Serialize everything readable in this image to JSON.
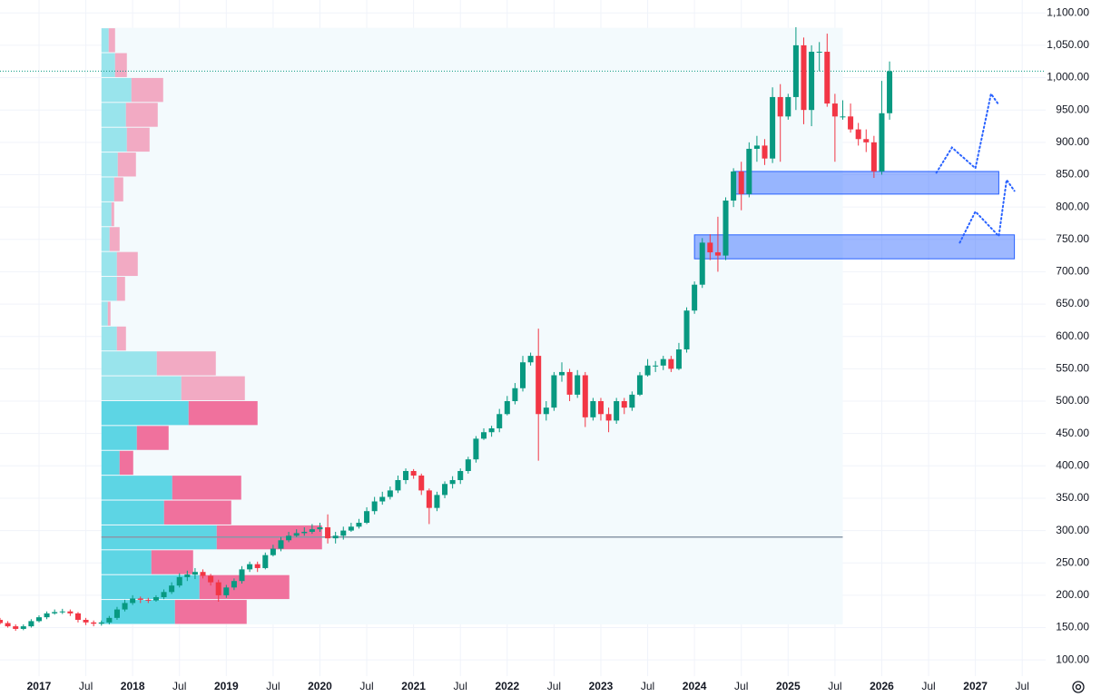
{
  "chart_data": {
    "type": "candlestick",
    "x": [
      "2016-08",
      "2016-09",
      "2016-10",
      "2016-11",
      "2016-12",
      "2017-01",
      "2017-02",
      "2017-03",
      "2017-04",
      "2017-05",
      "2017-06",
      "2017-07",
      "2017-08",
      "2017-09",
      "2017-10",
      "2017-11",
      "2017-12",
      "2018-01",
      "2018-02",
      "2018-03",
      "2018-04",
      "2018-05",
      "2018-06",
      "2018-07",
      "2018-08",
      "2018-09",
      "2018-10",
      "2018-11",
      "2018-12",
      "2019-01",
      "2019-02",
      "2019-03",
      "2019-04",
      "2019-05",
      "2019-06",
      "2019-07",
      "2019-08",
      "2019-09",
      "2019-10",
      "2019-11",
      "2019-12",
      "2020-01",
      "2020-02",
      "2020-03",
      "2020-04",
      "2020-05",
      "2020-06",
      "2020-07",
      "2020-08",
      "2020-09",
      "2020-10",
      "2020-11",
      "2020-12",
      "2021-01",
      "2021-02",
      "2021-03",
      "2021-04",
      "2021-05",
      "2021-06",
      "2021-07",
      "2021-08",
      "2021-09",
      "2021-10",
      "2021-11",
      "2021-12",
      "2022-01",
      "2022-02",
      "2022-03",
      "2022-04",
      "2022-05",
      "2022-06",
      "2022-07",
      "2022-08",
      "2022-09",
      "2022-10",
      "2022-11",
      "2022-12",
      "2023-01",
      "2023-02",
      "2023-03",
      "2023-04",
      "2023-05",
      "2023-06",
      "2023-07",
      "2023-08",
      "2023-09",
      "2023-10",
      "2023-11",
      "2023-12",
      "2024-01",
      "2024-02",
      "2024-03",
      "2024-04",
      "2024-05",
      "2024-06",
      "2024-07",
      "2024-08",
      "2024-09",
      "2024-10",
      "2024-11",
      "2024-12",
      "2025-01",
      "2025-02",
      "2025-03",
      "2025-04",
      "2025-05",
      "2025-06",
      "2025-07",
      "2025-08",
      "2025-09",
      "2025-10",
      "2025-11",
      "2025-12",
      "2026-01",
      "2026-02"
    ],
    "open": [
      162,
      157,
      152,
      148,
      152,
      160,
      166,
      172,
      174,
      175,
      172,
      162,
      158,
      156,
      158,
      165,
      178,
      188,
      195,
      193,
      192,
      197,
      205,
      215,
      228,
      232,
      236,
      230,
      220,
      200,
      212,
      222,
      240,
      248,
      242,
      262,
      272,
      285,
      292,
      296,
      298,
      302,
      305,
      288,
      292,
      300,
      306,
      312,
      330,
      345,
      352,
      362,
      378,
      392,
      385,
      362,
      335,
      355,
      372,
      378,
      392,
      410,
      442,
      452,
      458,
      480,
      500,
      520,
      560,
      570,
      480,
      490,
      540,
      545,
      510,
      540,
      475,
      500,
      480,
      470,
      500,
      490,
      510,
      540,
      555,
      555,
      565,
      550,
      580,
      640,
      680,
      745,
      730,
      725,
      810,
      855,
      820,
      890,
      895,
      875,
      970,
      940,
      970,
      1050,
      950,
      1040,
      1040,
      960,
      940,
      940,
      920,
      905,
      900,
      855,
      945
    ],
    "high": [
      165,
      160,
      155,
      155,
      163,
      169,
      175,
      178,
      179,
      178,
      174,
      165,
      161,
      161,
      168,
      182,
      193,
      200,
      198,
      196,
      200,
      209,
      220,
      234,
      238,
      242,
      240,
      233,
      224,
      216,
      226,
      245,
      252,
      252,
      266,
      278,
      290,
      298,
      302,
      305,
      310,
      312,
      325,
      298,
      306,
      312,
      318,
      336,
      352,
      360,
      368,
      385,
      396,
      395,
      388,
      365,
      360,
      376,
      384,
      396,
      414,
      446,
      458,
      462,
      488,
      508,
      528,
      570,
      575,
      612,
      500,
      545,
      560,
      550,
      548,
      545,
      505,
      505,
      490,
      505,
      505,
      515,
      545,
      565,
      562,
      570,
      570,
      590,
      645,
      685,
      752,
      758,
      785,
      815,
      860,
      870,
      900,
      910,
      905,
      985,
      990,
      975,
      1078,
      1062,
      1050,
      1055,
      1068,
      975,
      965,
      960,
      930,
      920,
      910,
      995,
      1025
    ],
    "low": [
      155,
      150,
      145,
      146,
      150,
      158,
      163,
      170,
      171,
      168,
      158,
      154,
      152,
      153,
      155,
      162,
      175,
      185,
      188,
      188,
      190,
      194,
      202,
      212,
      222,
      225,
      226,
      215,
      190,
      196,
      208,
      218,
      236,
      236,
      240,
      260,
      268,
      282,
      290,
      292,
      295,
      298,
      280,
      280,
      286,
      298,
      303,
      310,
      325,
      340,
      348,
      358,
      372,
      380,
      355,
      310,
      330,
      350,
      365,
      372,
      388,
      405,
      440,
      445,
      452,
      478,
      495,
      515,
      555,
      408,
      470,
      485,
      530,
      500,
      505,
      460,
      470,
      470,
      452,
      465,
      480,
      485,
      508,
      538,
      545,
      548,
      545,
      548,
      575,
      635,
      675,
      718,
      700,
      718,
      800,
      795,
      815,
      870,
      865,
      868,
      870,
      935,
      950,
      928,
      925,
      1010,
      955,
      870,
      935,
      915,
      895,
      885,
      845,
      850,
      935
    ],
    "close": [
      157,
      152,
      148,
      152,
      160,
      166,
      172,
      174,
      175,
      172,
      162,
      158,
      156,
      158,
      165,
      178,
      188,
      195,
      193,
      192,
      197,
      205,
      215,
      228,
      232,
      236,
      230,
      220,
      200,
      212,
      222,
      240,
      248,
      242,
      262,
      272,
      285,
      292,
      296,
      298,
      302,
      305,
      288,
      292,
      300,
      306,
      312,
      330,
      345,
      352,
      362,
      378,
      392,
      385,
      362,
      335,
      355,
      372,
      378,
      392,
      410,
      442,
      452,
      458,
      480,
      500,
      520,
      560,
      570,
      480,
      490,
      540,
      545,
      510,
      540,
      475,
      500,
      480,
      470,
      500,
      490,
      510,
      540,
      555,
      555,
      565,
      550,
      580,
      640,
      680,
      745,
      730,
      725,
      810,
      855,
      820,
      890,
      895,
      875,
      970,
      940,
      970,
      1050,
      950,
      1040,
      1040,
      960,
      940,
      940,
      920,
      905,
      900,
      855,
      945,
      1010
    ],
    "up_color": "#089981",
    "down_color": "#f23645",
    "xlim": [
      "2016-08",
      "2027-10"
    ],
    "ylim": [
      75,
      1120
    ],
    "xticks": [
      {
        "value": "2017-01",
        "label": "2017"
      },
      {
        "value": "2017-07",
        "label": "Jul"
      },
      {
        "value": "2018-01",
        "label": "2018"
      },
      {
        "value": "2018-07",
        "label": "Jul"
      },
      {
        "value": "2019-01",
        "label": "2019"
      },
      {
        "value": "2019-07",
        "label": "Jul"
      },
      {
        "value": "2020-01",
        "label": "2020"
      },
      {
        "value": "2020-07",
        "label": "Jul"
      },
      {
        "value": "2021-01",
        "label": "2021"
      },
      {
        "value": "2021-07",
        "label": "Jul"
      },
      {
        "value": "2022-01",
        "label": "2022"
      },
      {
        "value": "2022-07",
        "label": "Jul"
      },
      {
        "value": "2023-01",
        "label": "2023"
      },
      {
        "value": "2023-07",
        "label": "Jul"
      },
      {
        "value": "2024-01",
        "label": "2024"
      },
      {
        "value": "2024-07",
        "label": "Jul"
      },
      {
        "value": "2025-01",
        "label": "2025"
      },
      {
        "value": "2025-07",
        "label": "Jul"
      },
      {
        "value": "2026-01",
        "label": "2026"
      },
      {
        "value": "2026-07",
        "label": "Jul"
      },
      {
        "value": "2027-01",
        "label": "2027"
      },
      {
        "value": "2027-07",
        "label": "Jul"
      }
    ],
    "yticks": [
      {
        "value": 100,
        "label": "100.00"
      },
      {
        "value": 150,
        "label": "150.00"
      },
      {
        "value": 200,
        "label": "200.00"
      },
      {
        "value": 250,
        "label": "250.00"
      },
      {
        "value": 300,
        "label": "300.00"
      },
      {
        "value": 350,
        "label": "350.00"
      },
      {
        "value": 400,
        "label": "400.00"
      },
      {
        "value": 450,
        "label": "450.00"
      },
      {
        "value": 500,
        "label": "500.00"
      },
      {
        "value": 550,
        "label": "550.00"
      },
      {
        "value": 600,
        "label": "600.00"
      },
      {
        "value": 650,
        "label": "650.00"
      },
      {
        "value": 700,
        "label": "700.00"
      },
      {
        "value": 750,
        "label": "750.00"
      },
      {
        "value": 800,
        "label": "800.00"
      },
      {
        "value": 850,
        "label": "850.00"
      },
      {
        "value": 900,
        "label": "900.00"
      },
      {
        "value": 950,
        "label": "950.00"
      },
      {
        "value": 1000,
        "label": "1,000.00"
      },
      {
        "value": 1050,
        "label": "1,050.00"
      },
      {
        "value": 1100,
        "label": "1,100.00"
      }
    ],
    "grid": true,
    "price_line": 1010,
    "volume_profile": {
      "start": "2017-09",
      "end": "2025-08",
      "price_range": [
        155,
        1077
      ],
      "value_area": [
        155,
        505
      ],
      "poc": 290,
      "buy": [
        8,
        15,
        33,
        27,
        28,
        18,
        14,
        11,
        9,
        17,
        17,
        7,
        17,
        61,
        88,
        96,
        39,
        20,
        78,
        69,
        127,
        55,
        108,
        81
      ],
      "sell": [
        7,
        13,
        35,
        35,
        25,
        20,
        10,
        3,
        11,
        23,
        9,
        3,
        10,
        65,
        70,
        76,
        35,
        15,
        76,
        74,
        116,
        46,
        99,
        79
      ]
    },
    "zones": [
      {
        "low": 820,
        "high": 855,
        "start": "2024-06",
        "end": "2027-04"
      },
      {
        "low": 720,
        "high": 757,
        "start": "2024-01",
        "end": "2027-06"
      }
    ],
    "projections": [
      {
        "x": [
          "2026-08",
          "2026-10",
          "2027-01",
          "2027-03",
          "2027-04"
        ],
        "values": [
          853,
          892,
          860,
          975,
          958
        ]
      },
      {
        "x": [
          "2026-11",
          "2027-01",
          "2027-04",
          "2027-05",
          "2027-06"
        ],
        "values": [
          745,
          793,
          755,
          842,
          825
        ]
      }
    ]
  }
}
